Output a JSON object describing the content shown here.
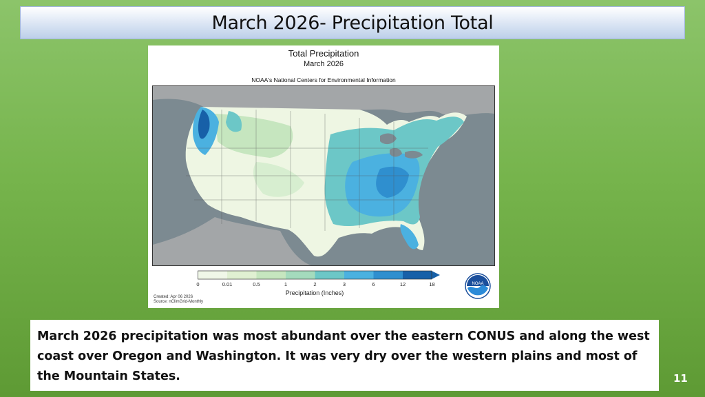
{
  "slide": {
    "title": "March 2026- Precipitation Total",
    "page_number": "11"
  },
  "map": {
    "title": "Total Precipitation",
    "subtitle": "March 2026",
    "source_org": "NOAA's National Centers for Environmental Information",
    "created": "Created: Apr 06 2026",
    "source": "Source: nClimGrid-Monthly",
    "logo_text": "NOAA",
    "colorbar": {
      "label": "Precipitation (Inches)",
      "ticks": [
        "0",
        "0.01",
        "0.5",
        "1",
        "2",
        "3",
        "6",
        "12",
        "18"
      ],
      "colors": [
        "#ffffff",
        "#f0f7e8",
        "#e0f0d2",
        "#c6e6bf",
        "#a4dbbd",
        "#6cc7c7",
        "#4bb1e0",
        "#2f8fcf",
        "#1760a8"
      ]
    },
    "land_color": "#7c8a91",
    "dry_color": "#eef6e3",
    "wet_color": "#4bb1e0"
  },
  "caption": {
    "text": "March 2026 precipitation was most abundant over the eastern CONUS and along the west coast over Oregon and Washington. It was very dry over the western plains and most of the Mountain States."
  }
}
